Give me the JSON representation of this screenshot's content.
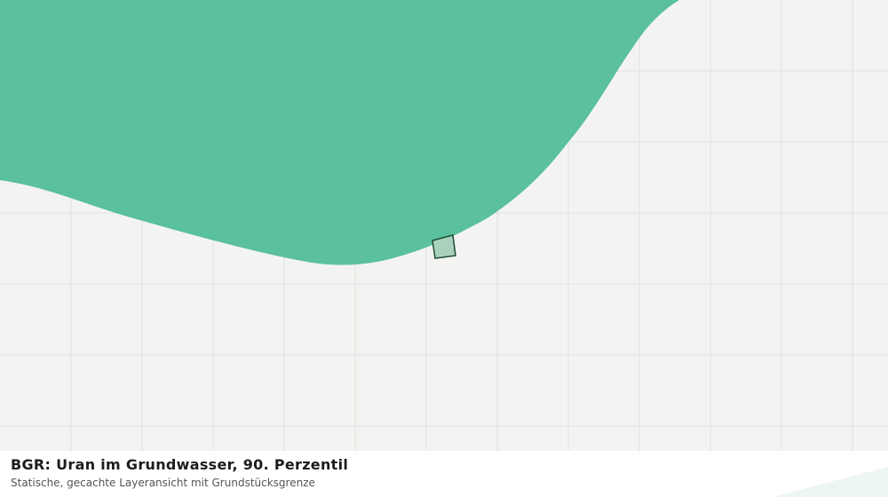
{
  "header": {
    "title": "BGR: Uran im Grundwasser, 90. Perzentil",
    "subtitle": "Statische, gecachte Layeransicht mit Grundstücksgrenze"
  }
}
